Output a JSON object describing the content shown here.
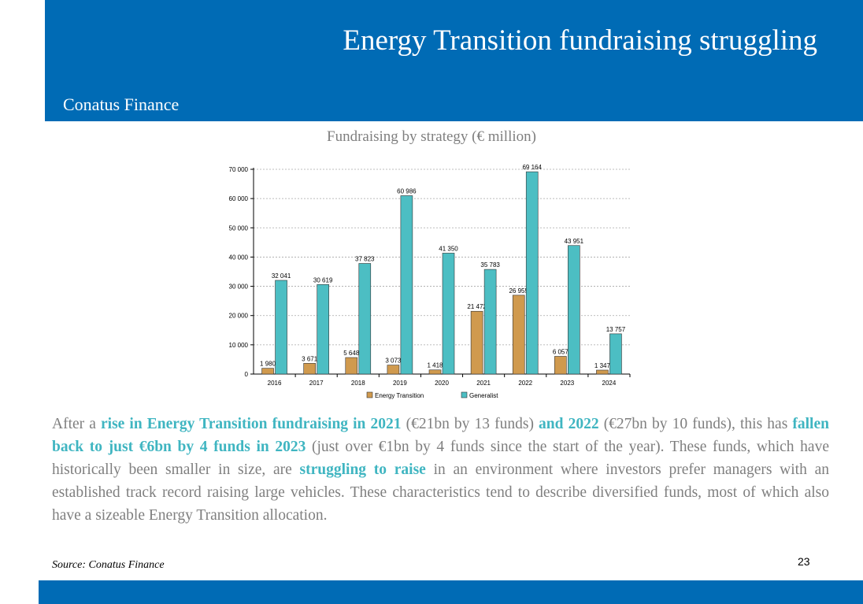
{
  "header": {
    "title": "Energy Transition fundraising struggling",
    "brand": "Conatus Finance"
  },
  "colors": {
    "header_bg": "#006bb5",
    "energy_transition": "#d09a4e",
    "generalist": "#4cbec3",
    "highlight_text": "#3fb5c1",
    "body_text": "#7f7f7f"
  },
  "chart_title": "Fundraising by strategy (€ million)",
  "chart_data": {
    "type": "bar",
    "categories": [
      "2016",
      "2017",
      "2018",
      "2019",
      "2020",
      "2021",
      "2022",
      "2023",
      "2024"
    ],
    "series": [
      {
        "name": "Energy Transition",
        "values": [
          1980,
          3671,
          5648,
          3073,
          1418,
          21472,
          26955,
          6057,
          1347
        ],
        "labels": [
          "1 980",
          "3 671",
          "5 648",
          "3 073",
          "1 418",
          "21 472",
          "26 955",
          "6 057",
          "1 347"
        ]
      },
      {
        "name": "Generalist",
        "values": [
          32041,
          30619,
          37823,
          60986,
          41350,
          35783,
          69164,
          43951,
          13757
        ],
        "labels": [
          "32 041",
          "30 619",
          "37 823",
          "60 986",
          "41 350",
          "35 783",
          "69 164",
          "43 951",
          "13 757"
        ]
      }
    ],
    "ylim": [
      0,
      70000
    ],
    "yticks": [
      0,
      10000,
      20000,
      30000,
      40000,
      50000,
      60000,
      70000
    ],
    "ytick_labels": [
      "0",
      "10 000",
      "20 000",
      "30 000",
      "40 000",
      "50 000",
      "60 000",
      "70 000"
    ],
    "grid": true,
    "legend_position": "bottom"
  },
  "body": {
    "p1": "After a ",
    "h1": "rise in Energy Transition fundraising in 2021",
    "p2": " (€21bn by 13 funds) ",
    "h2": "and 2022",
    "p3": " (€27bn by 10 funds), this has ",
    "h3": "fallen back to just €6bn by 4 funds in 2023",
    "p4": " (just over €1bn by 4 funds since the start of the year). These funds, which have historically been smaller in size, are ",
    "h4": "struggling to raise",
    "p5": " in an environment where investors prefer managers with an established track record raising large vehicles. These characteristics tend to describe diversified funds, most of which also have a sizeable Energy Transition allocation."
  },
  "source": "Source: Conatus Finance",
  "page_number": "23"
}
